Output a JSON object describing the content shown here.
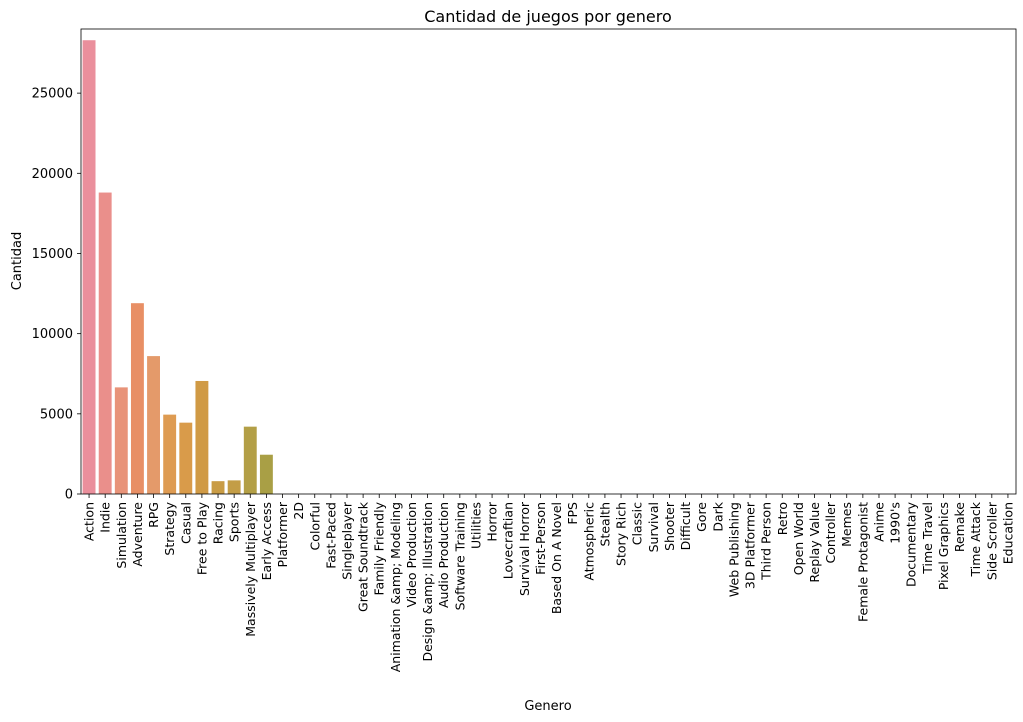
{
  "chart_data": {
    "type": "bar",
    "title": "Cantidad de juegos por genero",
    "xlabel": "Genero",
    "ylabel": "Cantidad",
    "ylim": [
      0,
      29000
    ],
    "yticks": [
      0,
      5000,
      10000,
      15000,
      20000,
      25000
    ],
    "grid": false,
    "legend": "none",
    "categories": [
      "Action",
      "Indie",
      "Simulation",
      "Adventure",
      "RPG",
      "Strategy",
      "Casual",
      "Free to Play",
      "Racing",
      "Sports",
      "Massively Multiplayer",
      "Early Access",
      "Platformer",
      "2D",
      "Colorful",
      "Fast-Paced",
      "Singleplayer",
      "Great Soundtrack",
      "Family Friendly",
      "Animation &amp; Modeling",
      "Video Production",
      "Design &amp; Illustration",
      "Audio Production",
      "Software Training",
      "Utilities",
      "Horror",
      "Lovecraftian",
      "Survival Horror",
      "First-Person",
      "Based On A Novel",
      "FPS",
      "Atmospheric",
      "Stealth",
      "Story Rich",
      "Classic",
      "Survival",
      "Shooter",
      "Difficult",
      "Gore",
      "Dark",
      "Web Publishing",
      "3D Platformer",
      "Third Person",
      "Retro",
      "Open World",
      "Replay Value",
      "Controller",
      "Memes",
      "Female Protagonist",
      "Anime",
      "1990's",
      "Documentary",
      "Time Travel",
      "Pixel Graphics",
      "Remake",
      "Time Attack",
      "Side Scroller",
      "Education"
    ],
    "values": [
      28300,
      18800,
      6650,
      11900,
      8600,
      4950,
      4450,
      7050,
      800,
      850,
      4200,
      2450,
      5,
      3,
      2,
      2,
      2,
      2,
      2,
      1,
      1,
      1,
      1,
      1,
      1,
      1,
      1,
      1,
      1,
      1,
      1,
      1,
      1,
      1,
      1,
      1,
      1,
      1,
      1,
      1,
      1,
      1,
      1,
      1,
      1,
      1,
      1,
      1,
      1,
      1,
      1,
      1,
      1,
      1,
      1,
      1,
      1,
      1
    ],
    "colors": [
      "#ea8f9c",
      "#ea8f8b",
      "#e89379",
      "#e88f65",
      "#e49a6a",
      "#de9b52",
      "#d99b4a",
      "#d09a45",
      "#c99c45",
      "#c39d46",
      "#b39f46",
      "#a99f45",
      "#9fa145",
      "#93a345",
      "#86a545",
      "#78a746",
      "#67a946",
      "#55ab4f",
      "#4fac66",
      "#50ac73",
      "#51ab80",
      "#52ab8a",
      "#52aa93",
      "#53a99c",
      "#54a8a3",
      "#55a8a9",
      "#56a7af",
      "#58a6b6",
      "#59a4bd",
      "#5ba3c4",
      "#5ea1cb",
      "#629fd2",
      "#689cda",
      "#6e99e2",
      "#7796e9",
      "#8292ec",
      "#8e8eeb",
      "#9a8aea",
      "#a686e8",
      "#b082e6",
      "#b97fe5",
      "#c27be3",
      "#ca78e1",
      "#d276de",
      "#d974da",
      "#df74d4",
      "#e475cd",
      "#e776c5",
      "#e978bd",
      "#ea7ab5",
      "#ea7cad",
      "#ea7fa6",
      "#ea829f",
      "#ea8599",
      "#ea8894",
      "#ea8b90",
      "#ea8d8d",
      "#ea8f8a"
    ]
  }
}
